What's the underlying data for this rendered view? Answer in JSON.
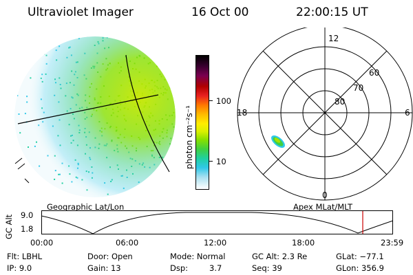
{
  "header": {
    "instrument": "Ultraviolet Imager",
    "date": "16 Oct 00",
    "time": "22:00:15 UT"
  },
  "colorbar": {
    "label": "photon cm⁻²s⁻¹",
    "ticks": [
      "100",
      "10"
    ],
    "colors": [
      "#000000",
      "#3a0030",
      "#7a0050",
      "#b00000",
      "#e82020",
      "#ff7700",
      "#ffbb00",
      "#ffee00",
      "#d8f000",
      "#88e000",
      "#40d040",
      "#20d0a0",
      "#30c8e8",
      "#a8e0f0",
      "#ffffff"
    ]
  },
  "polar_plot": {
    "mlt_labels": {
      "top": "12",
      "bottom": "0",
      "left": "18",
      "right": "6"
    },
    "lat_labels": [
      "80",
      "70",
      "60"
    ]
  },
  "timeline": {
    "left_label": "Geographic Lat/Lon",
    "right_label": "Apex MLat/MLT",
    "axis_title": "GC Alt",
    "y_ticks": [
      "9.0",
      "1.8"
    ],
    "x_ticks": [
      "00:00",
      "06:00",
      "12:00",
      "18:00",
      "23:59"
    ],
    "marker_color": "#cc0000"
  },
  "info": {
    "row1": {
      "flt": "Flt: LBHL",
      "door": "Door: Open",
      "mode": "Mode: Normal",
      "gcalt": "GC Alt: 2.3 Re",
      "glat": "GLat: −77.1"
    },
    "row2": {
      "ip": "IP:  9.0",
      "gain": "Gain: 13",
      "dsp_label": "Dsp:",
      "dsp_value": "3.7",
      "seq": "Seq: 39",
      "glon": "GLon: 356.9"
    }
  }
}
